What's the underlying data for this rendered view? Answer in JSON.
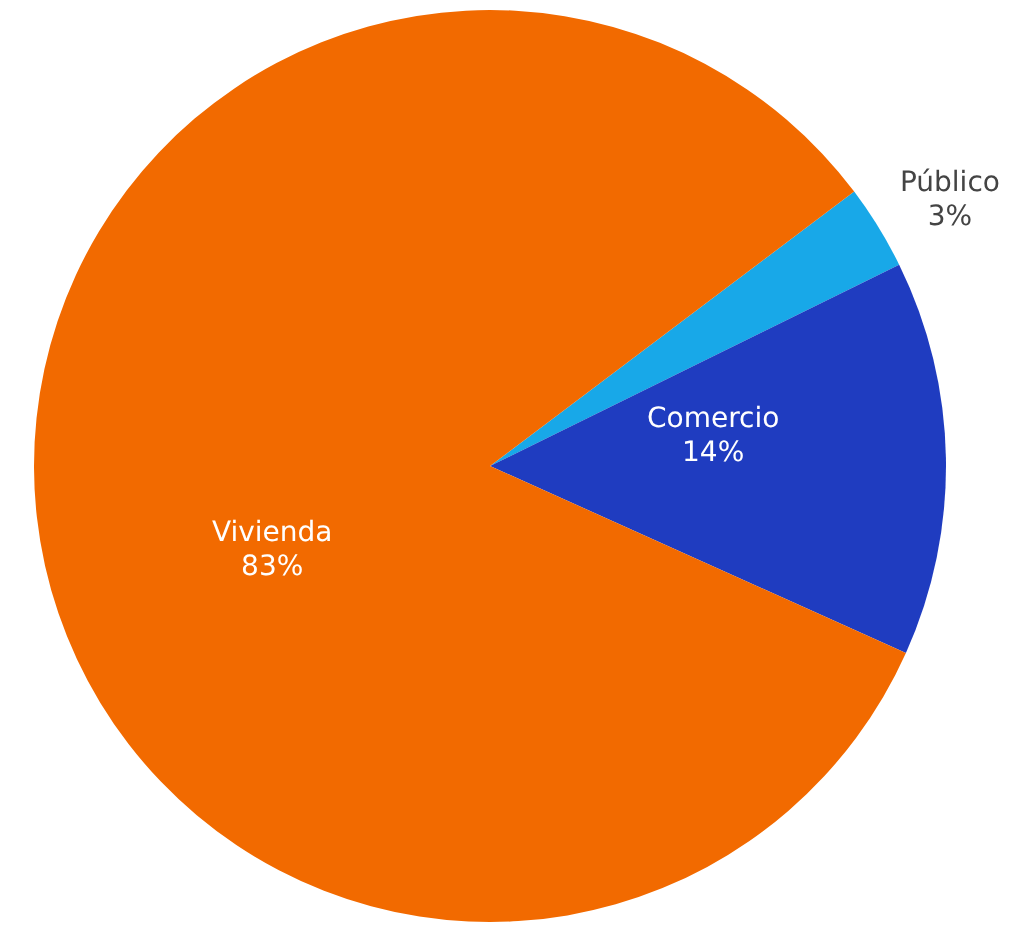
{
  "chart_data": {
    "type": "pie",
    "categories": [
      "Público",
      "Comercio",
      "Vivienda"
    ],
    "values": [
      3,
      14,
      83
    ],
    "value_labels": [
      "3%",
      "14%",
      "83%"
    ],
    "colors": [
      "#18a8e8",
      "#1f3cc0",
      "#f26a00"
    ]
  }
}
